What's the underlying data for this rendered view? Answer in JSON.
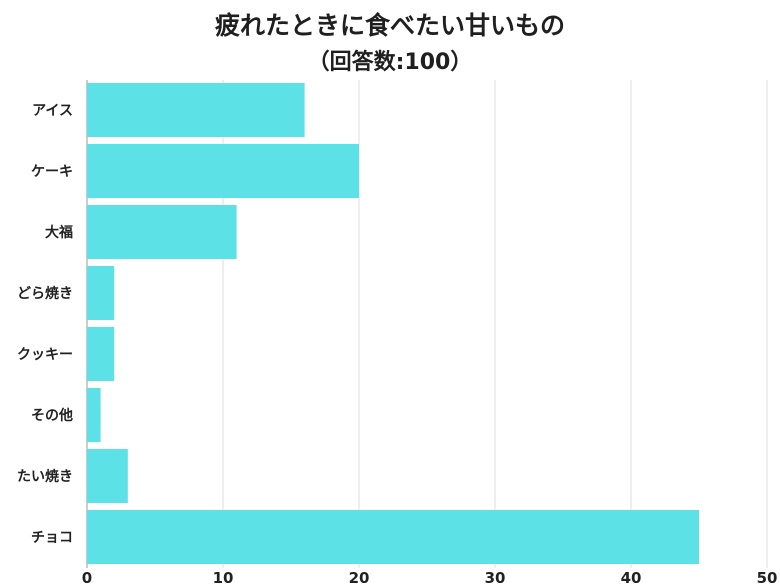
{
  "chart_data": {
    "type": "bar",
    "orientation": "horizontal",
    "title": "疲れたときに食べたい甘いもの",
    "subtitle": "（回答数:100）",
    "categories": [
      "アイス",
      "ケーキ",
      "大福",
      "どら焼き",
      "クッキー",
      "その他",
      "たい焼き",
      "チョコ"
    ],
    "values": [
      16,
      20,
      11,
      2,
      2,
      1,
      3,
      45
    ],
    "xlim": [
      0,
      50
    ],
    "xticks": [
      "0",
      "10",
      "20",
      "30",
      "40",
      "50"
    ],
    "grid": true,
    "bar_color": "#5ce1e6",
    "xlabel": "",
    "ylabel": ""
  }
}
